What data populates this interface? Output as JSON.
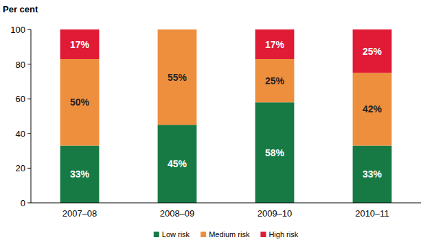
{
  "chart_data": {
    "type": "bar",
    "stacked": true,
    "data_labels": true,
    "grid": false,
    "legend": "bottom",
    "y_label": "Per cent",
    "categories": [
      "2007–08",
      "2008–09",
      "2009–10",
      "2010–11"
    ],
    "series": [
      {
        "name": "Low risk",
        "color": "#177a45",
        "values": [
          33,
          45,
          58,
          33
        ],
        "value_labels": [
          "33%",
          "45%",
          "58%",
          "33%"
        ]
      },
      {
        "name": "Medium risk",
        "color": "#ee8f3e",
        "values": [
          50,
          55,
          25,
          42
        ],
        "value_labels": [
          "50%",
          "55%",
          "25%",
          "42%"
        ]
      },
      {
        "name": "High risk",
        "color": "#e11a36",
        "values": [
          17,
          0,
          17,
          25
        ],
        "value_labels": [
          "17%",
          null,
          "17%",
          "25%"
        ]
      }
    ],
    "ylim": [
      0,
      100
    ],
    "yticks": [
      0,
      20,
      40,
      60,
      80,
      100
    ]
  }
}
